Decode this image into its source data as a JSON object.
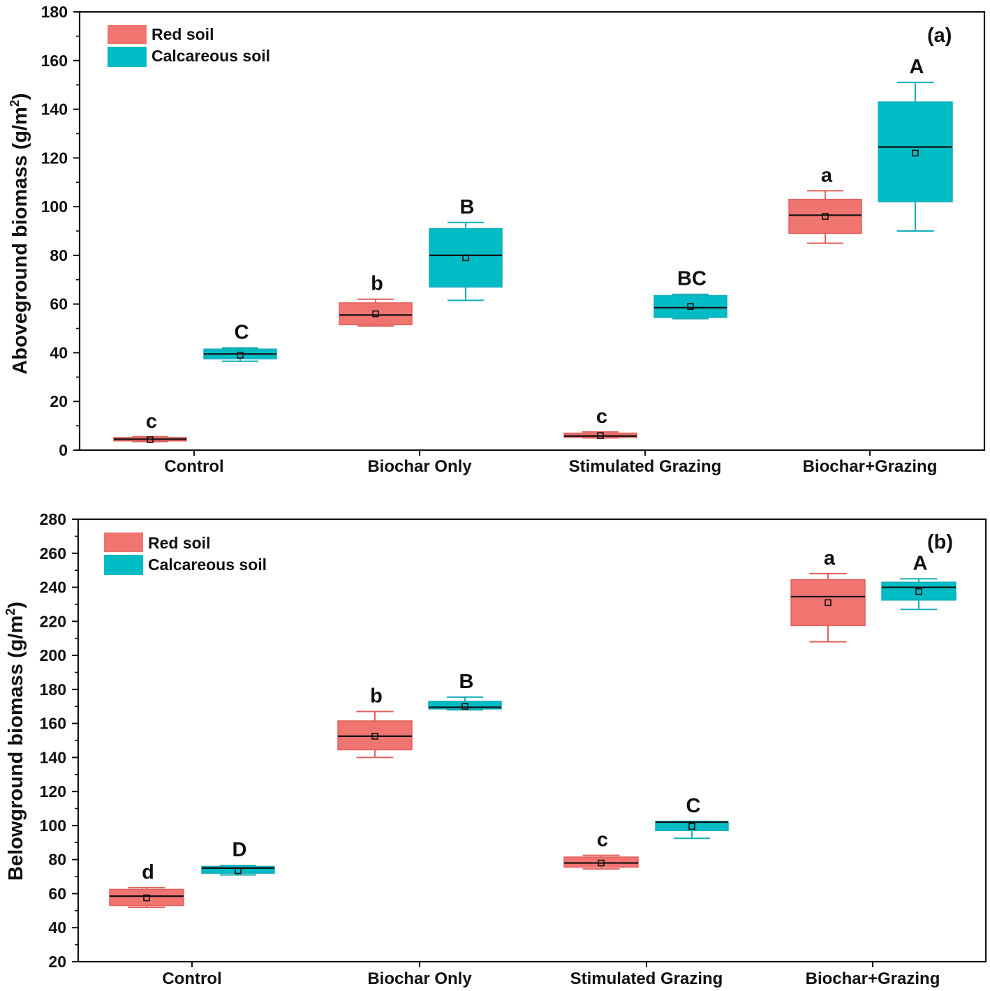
{
  "colors": {
    "red_soil": "#F07470",
    "calcareous_soil": "#00BCC5",
    "red_whisker": "#E3615D",
    "calc_whisker": "#13AEB8"
  },
  "legend": [
    "Red soil",
    "Calcareous soil"
  ],
  "chart_data": [
    {
      "type": "box",
      "panel_label": "(a)",
      "ylabel_main": "Aboveground biomass (g/m",
      "ylabel_sup": "2",
      "ylabel_close": ")",
      "ylim": [
        0,
        180
      ],
      "yticks": [
        0,
        20,
        40,
        60,
        80,
        100,
        120,
        140,
        160,
        180
      ],
      "categories": [
        "Control",
        "Biochar Only",
        "Stimulated Grazing",
        "Biochar+Grazing"
      ],
      "series": [
        {
          "name": "Red soil",
          "boxes": [
            {
              "min": 3.5,
              "q1": 3.8,
              "median": 4.5,
              "q3": 5.2,
              "max": 5.5,
              "mean": 4.3,
              "letter": "c"
            },
            {
              "min": 51,
              "q1": 51.5,
              "median": 55.5,
              "q3": 60.5,
              "max": 62,
              "mean": 56,
              "letter": "b"
            },
            {
              "min": 5,
              "q1": 5.2,
              "median": 5.8,
              "q3": 7,
              "max": 7.5,
              "mean": 6,
              "letter": "c"
            },
            {
              "min": 85,
              "q1": 89,
              "median": 96.5,
              "q3": 103,
              "max": 106.5,
              "mean": 96,
              "letter": "a"
            }
          ]
        },
        {
          "name": "Calcareous soil",
          "boxes": [
            {
              "min": 36.5,
              "q1": 37.5,
              "median": 39.5,
              "q3": 41.5,
              "max": 42,
              "mean": 39,
              "letter": "C"
            },
            {
              "min": 61.5,
              "q1": 67,
              "median": 80,
              "q3": 91,
              "max": 93.5,
              "mean": 79,
              "letter": "B"
            },
            {
              "min": 54,
              "q1": 54.5,
              "median": 58.5,
              "q3": 63.5,
              "max": 64,
              "mean": 59,
              "letter": "BC"
            },
            {
              "min": 90,
              "q1": 102,
              "median": 124.5,
              "q3": 143,
              "max": 151,
              "mean": 122,
              "letter": "A"
            }
          ]
        }
      ]
    },
    {
      "type": "box",
      "panel_label": "(b)",
      "ylabel_main": "Belowground biomass (g/m",
      "ylabel_sup": "2",
      "ylabel_close": ")",
      "ylim": [
        20,
        280
      ],
      "yticks": [
        20,
        40,
        60,
        80,
        100,
        120,
        140,
        160,
        180,
        200,
        220,
        240,
        260,
        280
      ],
      "categories": [
        "Control",
        "Biochar Only",
        "Stimulated Grazing",
        "Biochar+Grazing"
      ],
      "series": [
        {
          "name": "Red soil",
          "boxes": [
            {
              "min": 52,
              "q1": 53,
              "median": 58.5,
              "q3": 62.5,
              "max": 63.5,
              "mean": 57.5,
              "letter": "d"
            },
            {
              "min": 140,
              "q1": 144.5,
              "median": 152.5,
              "q3": 161.5,
              "max": 167,
              "mean": 152.5,
              "letter": "b"
            },
            {
              "min": 74.5,
              "q1": 75.5,
              "median": 78,
              "q3": 81.5,
              "max": 82.5,
              "mean": 78,
              "letter": "c"
            },
            {
              "min": 208,
              "q1": 217.5,
              "median": 234.5,
              "q3": 244.5,
              "max": 248,
              "mean": 231,
              "letter": "a"
            }
          ]
        },
        {
          "name": "Calcareous soil",
          "boxes": [
            {
              "min": 71,
              "q1": 72,
              "median": 75,
              "q3": 76,
              "max": 76.5,
              "mean": 73.5,
              "letter": "D"
            },
            {
              "min": 168,
              "q1": 168.5,
              "median": 169.5,
              "q3": 173,
              "max": 175.5,
              "mean": 170,
              "letter": "B"
            },
            {
              "min": 92.5,
              "q1": 97,
              "median": 102,
              "q3": 102.5,
              "max": 102.5,
              "mean": 99.5,
              "letter": "C"
            },
            {
              "min": 227,
              "q1": 232.5,
              "median": 240,
              "q3": 243,
              "max": 245,
              "mean": 237.5,
              "letter": "A"
            }
          ]
        }
      ]
    }
  ]
}
